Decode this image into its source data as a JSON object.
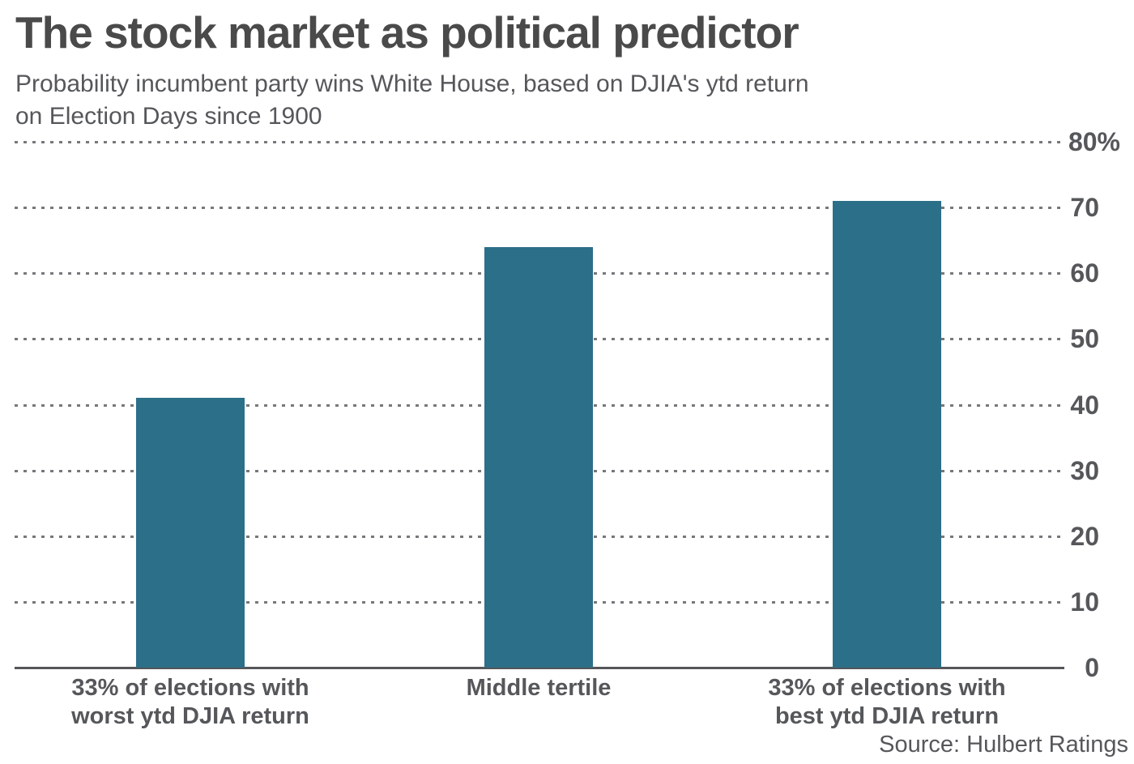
{
  "title": "The stock market as political predictor",
  "subtitle_lines": [
    "Probability incumbent party wins White House, based on DJIA's ytd return",
    "on Election Days since 1900"
  ],
  "source": "Source: Hulbert Ratings",
  "colors": {
    "bar": "#2b6f88",
    "title_text": "#4a4a4a",
    "body_text": "#55575a",
    "gridline": "#77787b",
    "axis": "#55565a"
  },
  "chart_data": {
    "type": "bar",
    "title": "The stock market as political predictor",
    "subtitle": "Probability incumbent party wins White House, based on DJIA's ytd return on Election Days since 1900",
    "categories": [
      [
        "33% of elections with",
        "worst ytd DJIA return"
      ],
      [
        "Middle tertile"
      ],
      [
        "33% of elections with",
        "best ytd DJIA return"
      ]
    ],
    "values": [
      41,
      64,
      71
    ],
    "xlabel": "",
    "ylabel": "",
    "ylim": [
      0,
      80
    ],
    "yticks": [
      {
        "value": 0,
        "label": "0"
      },
      {
        "value": 10,
        "label": "10"
      },
      {
        "value": 20,
        "label": "20"
      },
      {
        "value": 30,
        "label": "30"
      },
      {
        "value": 40,
        "label": "40"
      },
      {
        "value": 50,
        "label": "50"
      },
      {
        "value": 60,
        "label": "60"
      },
      {
        "value": 70,
        "label": "70"
      },
      {
        "value": 80,
        "label": "80%"
      }
    ],
    "grid": "horizontal-dashed",
    "tick_side": "right",
    "legend": null,
    "source": "Source: Hulbert Ratings"
  }
}
